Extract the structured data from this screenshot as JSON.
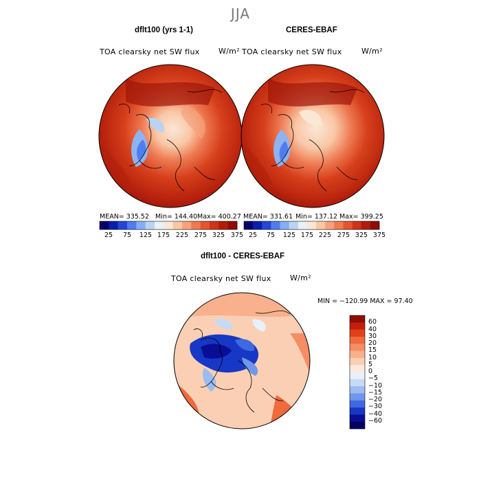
{
  "season": "JJA",
  "panels": [
    {
      "title": "dflt100 (yrs 1-1)",
      "variable": "TOA clearsky net SW flux",
      "units": "W/m²",
      "mean": "MEAN= 335.52",
      "min": "Min= 144.40",
      "max": "Max= 400.27"
    },
    {
      "title": "CERES-EBAF",
      "variable": "TOA clearsky net SW flux",
      "units": "W/m²",
      "mean": "MEAN= 331.61",
      "min": "Min= 137.12",
      "max": "Max= 399.25"
    }
  ],
  "field_colorbar": {
    "labels": [
      "25",
      "75",
      "125",
      "175",
      "225",
      "275",
      "325",
      "375"
    ],
    "colors": [
      "#08006e",
      "#0a1fa8",
      "#2446d8",
      "#4f7df0",
      "#86aef2",
      "#bcd2f2",
      "#e8f0f8",
      "#fbe7d6",
      "#f9c7a5",
      "#f5a27c",
      "#ee7a52",
      "#e3552e",
      "#cf3318",
      "#b11c0c",
      "#8e0d04"
    ]
  },
  "diff_panel": {
    "title": "dflt100 - CERES-EBAF",
    "variable": "TOA clearsky net SW flux",
    "units": "W/m²",
    "range": "MIN = −120.99 MAX =  97.40"
  },
  "diff_colorbar": {
    "labels": [
      "60",
      "40",
      "30",
      "20",
      "15",
      "10",
      "5",
      "0",
      "−5",
      "−10",
      "−15",
      "−20",
      "−30",
      "−40",
      "−60"
    ],
    "colors": [
      "#8e0d04",
      "#c21f0c",
      "#e0401a",
      "#ef6a3c",
      "#f58e63",
      "#f9b08c",
      "#fbcfb4",
      "#fbe9dd",
      "#e8f0f9",
      "#c6daf4",
      "#9cbcf0",
      "#6f98ec",
      "#3f69e0",
      "#1737c6",
      "#0a0e95",
      "#060060"
    ]
  }
}
